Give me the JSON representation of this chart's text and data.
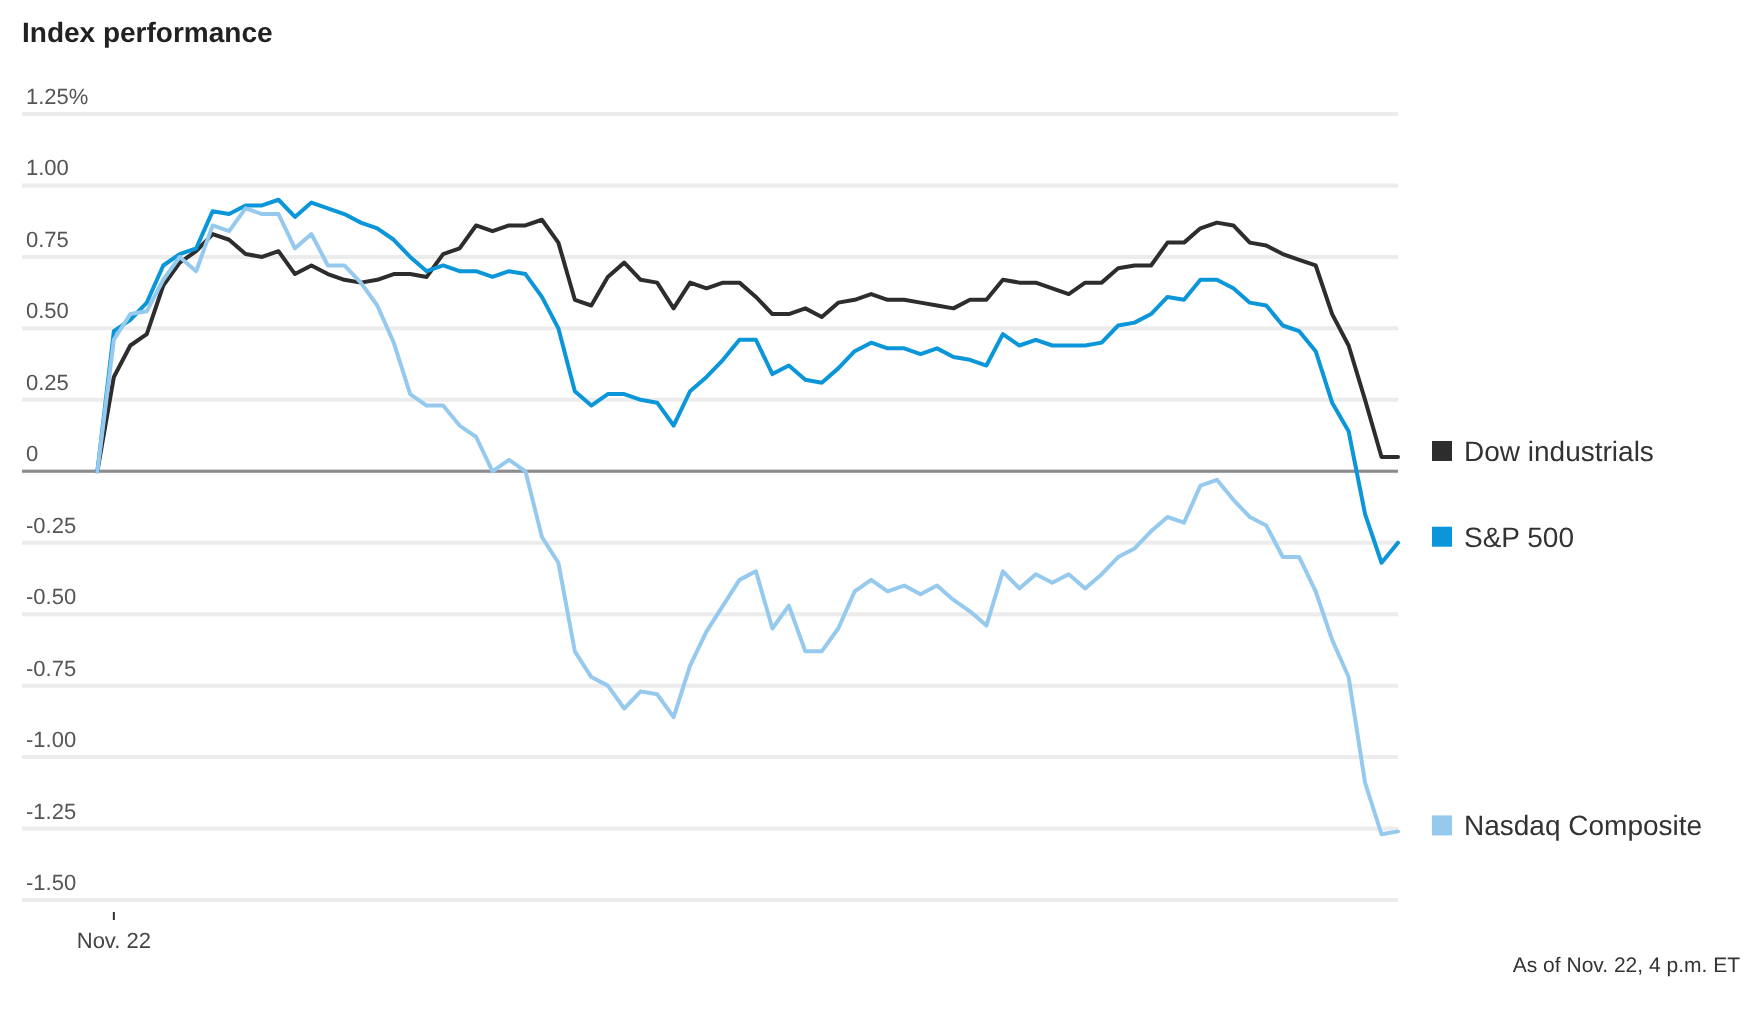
{
  "chart_data": {
    "type": "line",
    "title": "Index performance",
    "annotations": [
      "As of Nov. 22, 4 p.m. ET"
    ],
    "categories": [
      null,
      "Nov. 22",
      null,
      null,
      null,
      null,
      null,
      null,
      null,
      null,
      null,
      null,
      null,
      null,
      null,
      null,
      null,
      null,
      null,
      null,
      null,
      null,
      null,
      null,
      null,
      null,
      null,
      null,
      null,
      null,
      null,
      null,
      null,
      null,
      null,
      null,
      null,
      null,
      null,
      null,
      null,
      null,
      null,
      null,
      null,
      null,
      null,
      null,
      null,
      null,
      null,
      null,
      null,
      null,
      null,
      null,
      null,
      null,
      null,
      null,
      null,
      null,
      null,
      null,
      null,
      null,
      null,
      null,
      null,
      null,
      null,
      null,
      null,
      null,
      null,
      null,
      null,
      null,
      null,
      null
    ],
    "series": [
      {
        "name": "Dow industrials",
        "color": "#2d2d2d",
        "values": [
          0,
          0.33,
          0.44,
          0.48,
          0.65,
          0.73,
          0.77,
          0.83,
          0.81,
          0.76,
          0.75,
          0.77,
          0.69,
          0.72,
          0.69,
          0.67,
          0.66,
          0.67,
          0.69,
          0.69,
          0.68,
          0.76,
          0.78,
          0.86,
          0.84,
          0.86,
          0.86,
          0.88,
          0.8,
          0.6,
          0.58,
          0.68,
          0.73,
          0.67,
          0.66,
          0.57,
          0.66,
          0.64,
          0.66,
          0.66,
          0.61,
          0.55,
          0.55,
          0.57,
          0.54,
          0.59,
          0.6,
          0.62,
          0.6,
          0.6,
          0.59,
          0.58,
          0.57,
          0.6,
          0.6,
          0.67,
          0.66,
          0.66,
          0.64,
          0.62,
          0.66,
          0.66,
          0.71,
          0.72,
          0.72,
          0.8,
          0.8,
          0.85,
          0.87,
          0.86,
          0.8,
          0.79,
          0.76,
          0.74,
          0.72,
          0.55,
          0.44,
          0.25,
          0.05,
          0.05
        ]
      },
      {
        "name": "S&P 500",
        "color": "#0a96d8",
        "values": [
          0,
          0.49,
          0.53,
          0.59,
          0.72,
          0.76,
          0.78,
          0.91,
          0.9,
          0.93,
          0.93,
          0.95,
          0.89,
          0.94,
          0.92,
          0.9,
          0.87,
          0.85,
          0.81,
          0.75,
          0.7,
          0.72,
          0.7,
          0.7,
          0.68,
          0.7,
          0.69,
          0.61,
          0.5,
          0.28,
          0.23,
          0.27,
          0.27,
          0.25,
          0.24,
          0.16,
          0.28,
          0.33,
          0.39,
          0.46,
          0.46,
          0.34,
          0.37,
          0.32,
          0.31,
          0.36,
          0.42,
          0.45,
          0.43,
          0.43,
          0.41,
          0.43,
          0.4,
          0.39,
          0.37,
          0.48,
          0.44,
          0.46,
          0.44,
          0.44,
          0.44,
          0.45,
          0.51,
          0.52,
          0.55,
          0.61,
          0.6,
          0.67,
          0.67,
          0.64,
          0.59,
          0.58,
          0.51,
          0.49,
          0.42,
          0.24,
          0.14,
          -0.15,
          -0.32,
          -0.25
        ]
      },
      {
        "name": "Nasdaq Composite",
        "color": "#95caee",
        "values": [
          0,
          0.46,
          0.55,
          0.56,
          0.67,
          0.75,
          0.7,
          0.86,
          0.84,
          0.92,
          0.9,
          0.9,
          0.78,
          0.83,
          0.72,
          0.72,
          0.66,
          0.58,
          0.45,
          0.27,
          0.23,
          0.23,
          0.16,
          0.12,
          0.0,
          0.04,
          0.0,
          -0.23,
          -0.32,
          -0.63,
          -0.72,
          -0.75,
          -0.83,
          -0.77,
          -0.78,
          -0.86,
          -0.68,
          -0.56,
          -0.47,
          -0.38,
          -0.35,
          -0.55,
          -0.47,
          -0.63,
          -0.63,
          -0.55,
          -0.42,
          -0.38,
          -0.42,
          -0.4,
          -0.43,
          -0.4,
          -0.45,
          -0.49,
          -0.54,
          -0.35,
          -0.41,
          -0.36,
          -0.39,
          -0.36,
          -0.41,
          -0.36,
          -0.3,
          -0.27,
          -0.21,
          -0.16,
          -0.18,
          -0.05,
          -0.03,
          -0.1,
          -0.16,
          -0.19,
          -0.3,
          -0.3,
          -0.42,
          -0.59,
          -0.72,
          -1.09,
          -1.27,
          -1.26
        ]
      }
    ],
    "ylim": [
      -1.5,
      1.25
    ],
    "yticks": [
      {
        "value": -1.5,
        "label": "-1.50"
      },
      -1.25,
      {
        "value": -1,
        "label": "-1.00"
      },
      -0.75,
      {
        "value": -0.5,
        "label": "-0.50"
      },
      -0.25,
      0,
      0.25,
      {
        "value": 0.5,
        "label": "0.50"
      },
      0.75,
      {
        "value": 1,
        "label": "1.00"
      },
      {
        "value": 1.25,
        "label": "1.25%"
      }
    ],
    "grid": "y",
    "legend": "right",
    "ref_lines": [
      {
        "axis": "y",
        "value": 0,
        "color": "#8c8c8c"
      }
    ]
  }
}
